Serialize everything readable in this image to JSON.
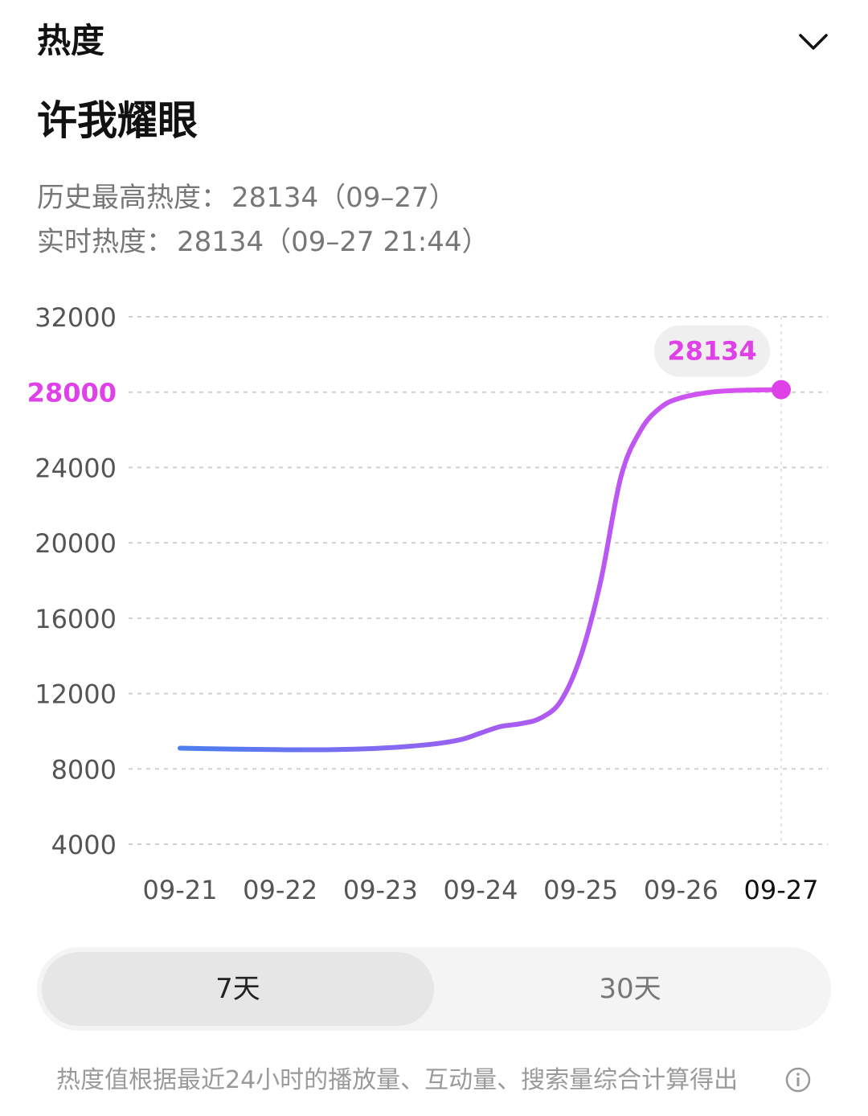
{
  "header": {
    "section_title": "热度",
    "collapse_icon": "chevron-down-icon"
  },
  "song": {
    "title": "许我耀眼"
  },
  "stats": {
    "peak_label": "历史最高热度：",
    "peak_value": "28134（09–27）",
    "live_label": "实时热度：",
    "live_value": "28134（09–27 21:44）"
  },
  "chart_data": {
    "type": "line",
    "x": [
      "09-21",
      "09-22",
      "09-23",
      "09-24",
      "09-25",
      "09-26",
      "09-27"
    ],
    "series": [
      {
        "points": [
          [
            0,
            9100
          ],
          [
            0.5,
            9050
          ],
          [
            1,
            9020
          ],
          [
            1.5,
            9020
          ],
          [
            2,
            9100
          ],
          [
            2.5,
            9300
          ],
          [
            2.8,
            9550
          ],
          [
            3.0,
            9900
          ],
          [
            3.2,
            10250
          ],
          [
            3.4,
            10400
          ],
          [
            3.6,
            10700
          ],
          [
            3.8,
            11600
          ],
          [
            4.0,
            14000
          ],
          [
            4.2,
            18000
          ],
          [
            4.4,
            23500
          ],
          [
            4.6,
            26000
          ],
          [
            4.8,
            27200
          ],
          [
            5.0,
            27700
          ],
          [
            5.3,
            28000
          ],
          [
            5.6,
            28100
          ],
          [
            6.0,
            28134
          ]
        ]
      }
    ],
    "yticks": [
      4000,
      8000,
      12000,
      16000,
      20000,
      24000,
      28000,
      32000
    ],
    "ytick_labels": [
      "4000",
      "8000",
      "12000",
      "16000",
      "20000",
      "24000",
      "28000",
      "32000"
    ],
    "ylim": [
      4000,
      32000
    ],
    "highlighted_ytick": "28000",
    "highlighted_xtick": "09-27",
    "peak_point": {
      "x": "09-27",
      "y": 28134,
      "label": "28134"
    },
    "grid": true,
    "colors": {
      "line_start": "#4a7ff0",
      "line_mid": "#a65cf2",
      "line_end": "#e04ff0",
      "highlight": "#e040e8",
      "grid": "#cfcfcf",
      "tick": "#555555"
    }
  },
  "range_toggle": {
    "options": [
      "7天",
      "30天"
    ],
    "selected": "7天"
  },
  "footnote": {
    "text": "热度值根据最近24小时的播放量、互动量、搜索量综合计算得出",
    "info_icon": "info-icon"
  }
}
